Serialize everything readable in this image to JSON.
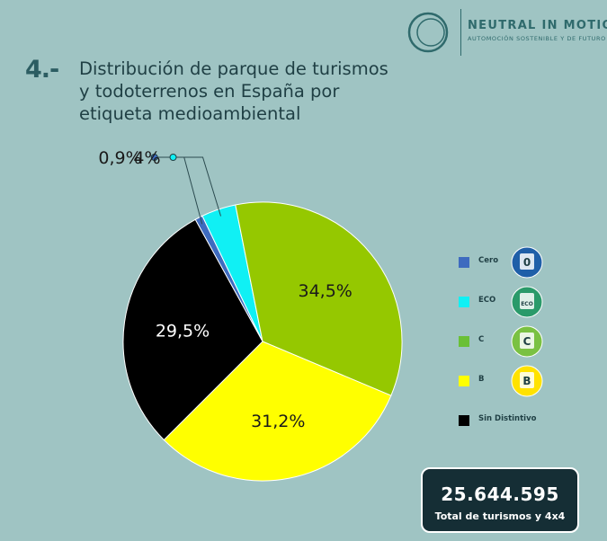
{
  "brand": {
    "name": "NEUTRAL IN MOTION",
    "tagline": "AUTOMOCIÓN SOSTENIBLE Y DE FUTURO"
  },
  "section_number": "4.-",
  "title_lines": [
    "Distribución de parque de turismos",
    "y todoterrenos en España por",
    "etiqueta medioambiental"
  ],
  "chart_data": {
    "type": "pie",
    "categories": [
      "Cero",
      "ECO",
      "C",
      "B",
      "Sin Distintivo"
    ],
    "values": [
      0.9,
      4,
      34.5,
      31.2,
      29.5
    ],
    "data_labels": [
      "0,9%",
      "4%",
      "34,5%",
      "31,2%",
      "29,5%"
    ],
    "colors": [
      "#3e6bbf",
      "#10f0f4",
      "#95c800",
      "#ffff00",
      "#000000"
    ],
    "legend": "right"
  },
  "legend_items": [
    {
      "label": "Cero",
      "color": "#3e6bbf",
      "badge_text": "0",
      "badge_bg": "#1f5fa8"
    },
    {
      "label": "ECO",
      "color": "#10f0f4",
      "badge_text": "ECO",
      "badge_bg": "#2a9a6a"
    },
    {
      "label": "C",
      "color": "#6ac036",
      "badge_text": "C",
      "badge_bg": "#7ac142"
    },
    {
      "label": "B",
      "color": "#ffff00",
      "badge_text": "B",
      "badge_bg": "#ffe200"
    },
    {
      "label": "Sin Distintivo",
      "color": "#000000"
    }
  ],
  "total": {
    "value": "25.644.595",
    "label": "Total de turismos y 4x4"
  }
}
